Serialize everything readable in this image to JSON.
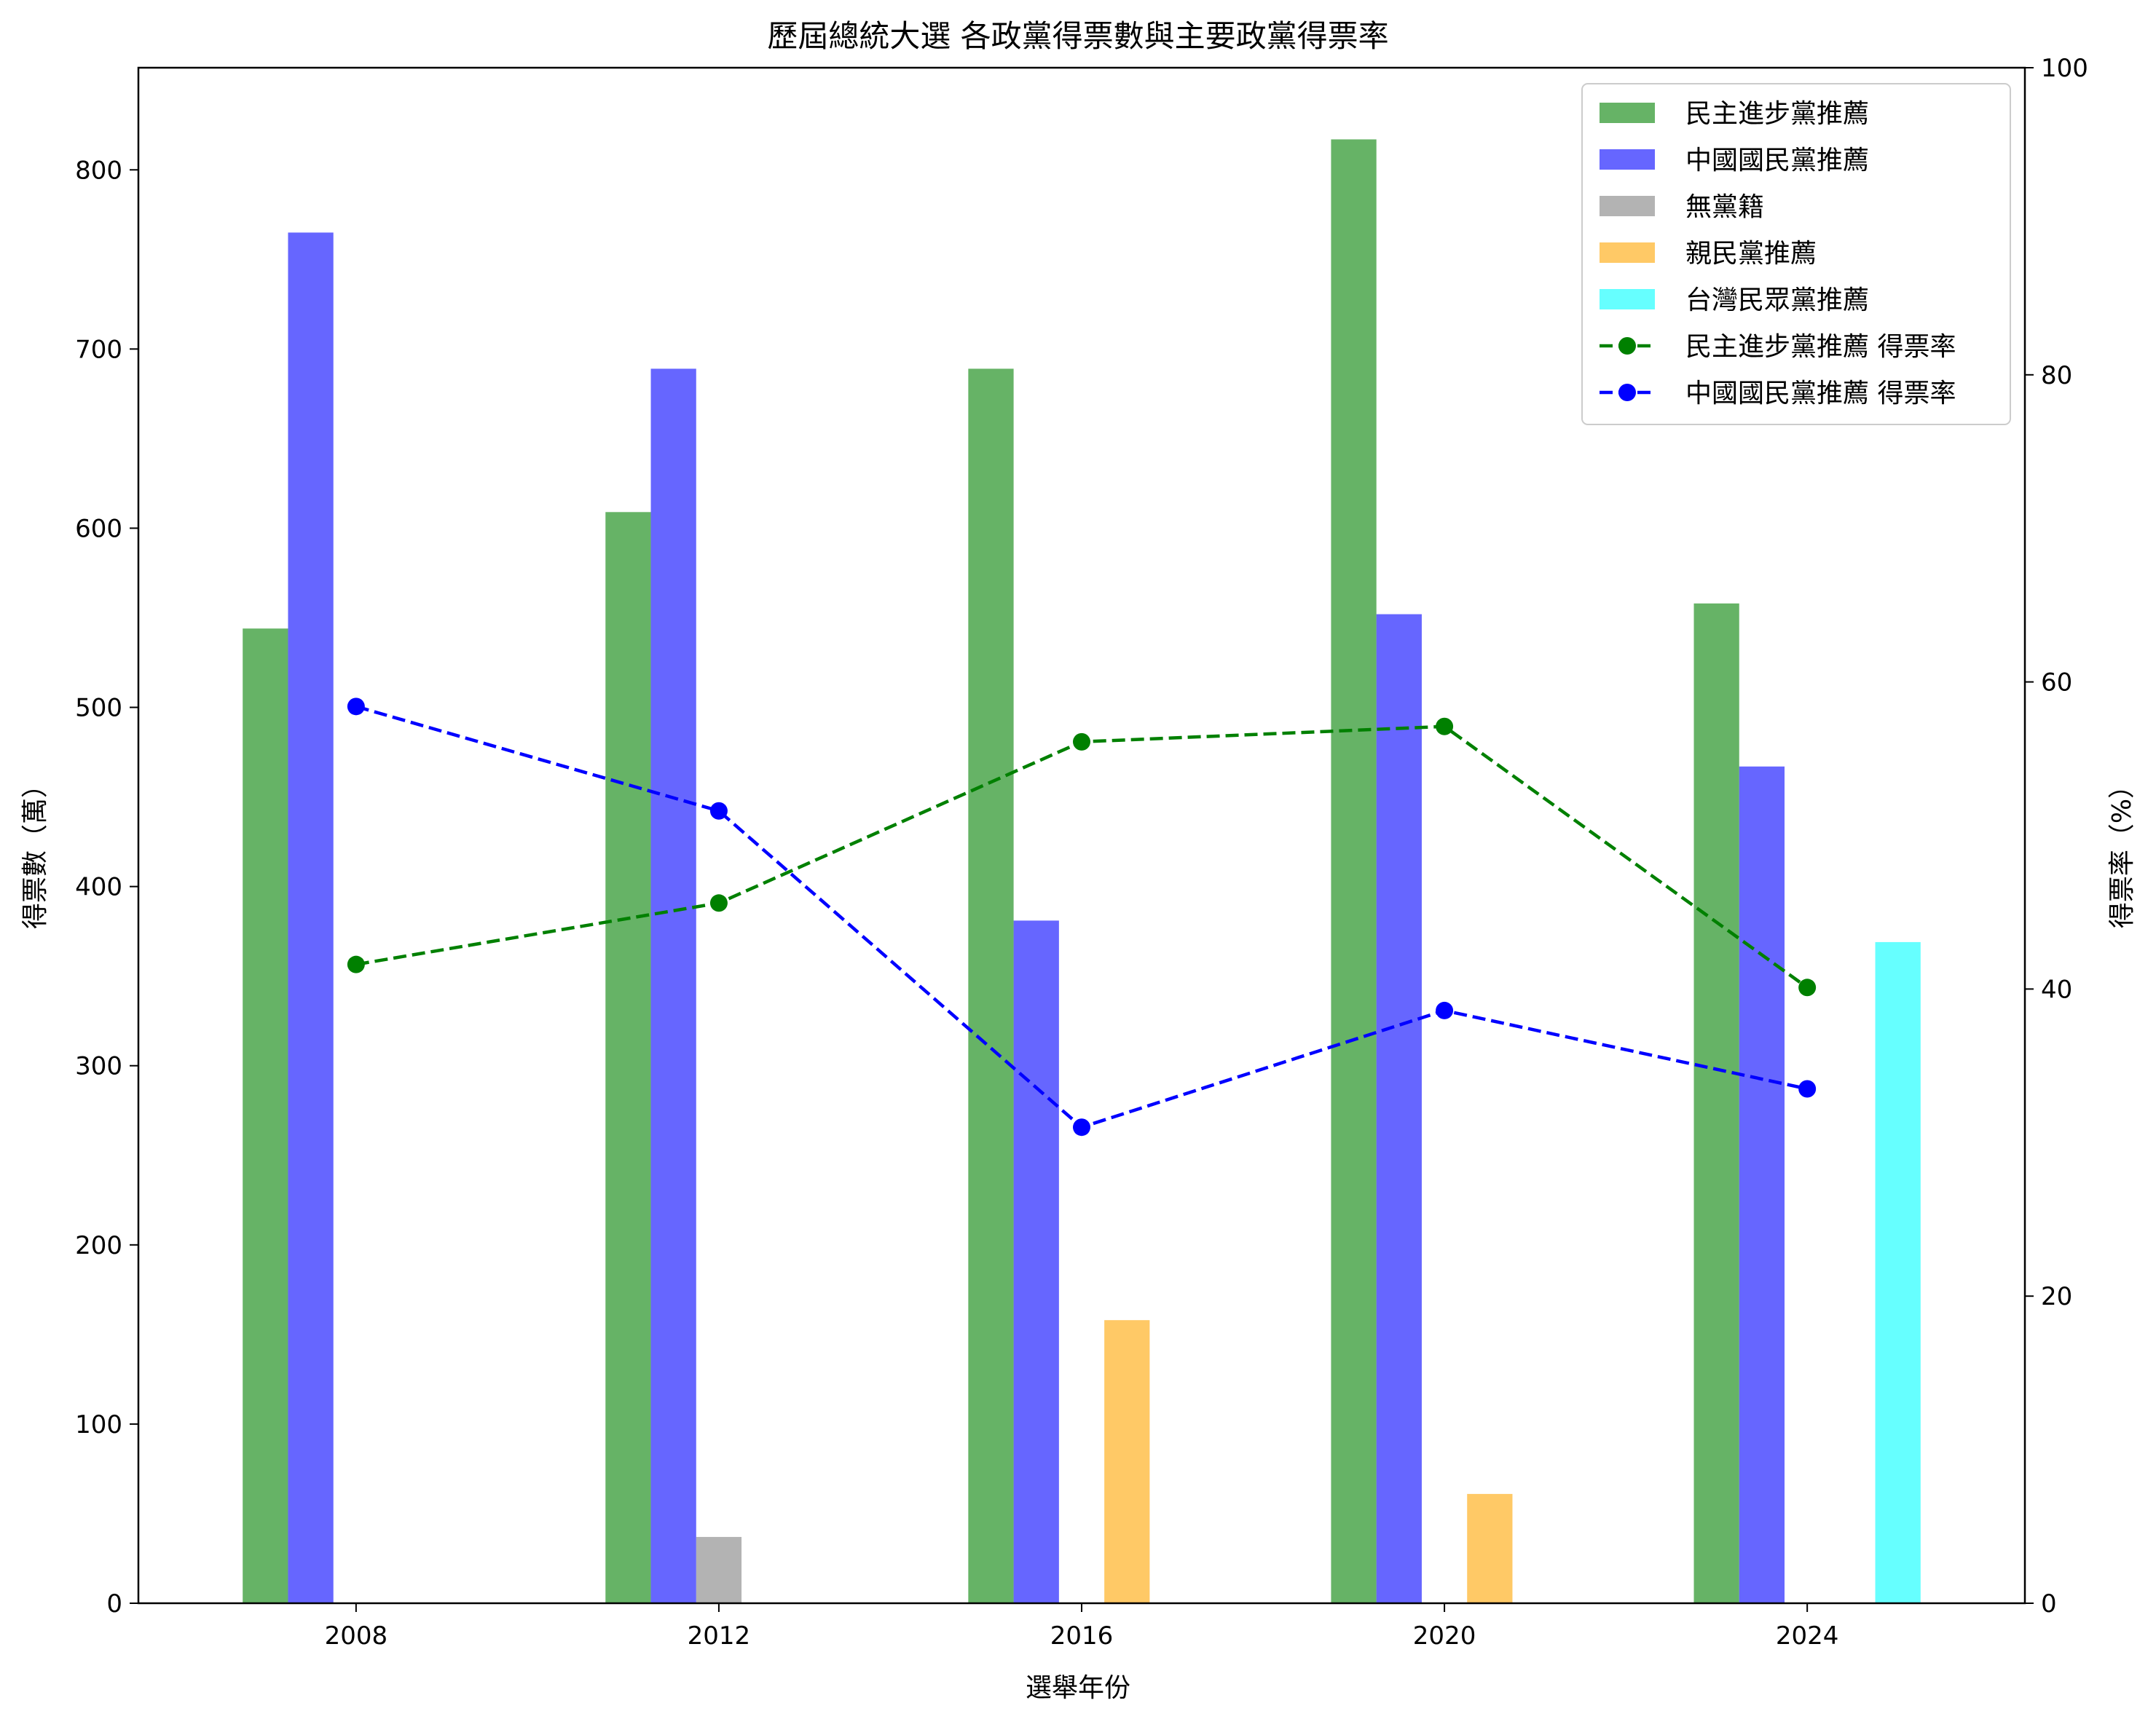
{
  "chart_data": {
    "type": "bar",
    "title": "歷屆總統大選 各政黨得票數與主要政黨得票率",
    "xlabel": "選舉年份",
    "ylabel": "得票數（萬）",
    "ylabel_right": "得票率（%）",
    "categories": [
      "2008",
      "2012",
      "2016",
      "2020",
      "2024"
    ],
    "ylim": [
      0,
      857
    ],
    "ylim_right": [
      0,
      100
    ],
    "yticks": [
      0,
      100,
      200,
      300,
      400,
      500,
      600,
      700,
      800
    ],
    "yticks_right": [
      0,
      20,
      40,
      60,
      80,
      100
    ],
    "grid": false,
    "legend_position": "top-right",
    "bar_series": [
      {
        "name": "民主進步黨推薦",
        "color": "#008000",
        "opacity": 0.6,
        "values": [
          544,
          609,
          689,
          817,
          558
        ]
      },
      {
        "name": "中國國民黨推薦",
        "color": "#0000ff",
        "opacity": 0.6,
        "values": [
          765,
          689,
          381,
          552,
          467
        ]
      },
      {
        "name": "無黨籍",
        "color": "#808080",
        "opacity": 0.6,
        "values": [
          null,
          37,
          null,
          null,
          null
        ]
      },
      {
        "name": "親民黨推薦",
        "color": "#ffa500",
        "opacity": 0.6,
        "values": [
          null,
          null,
          158,
          61,
          null
        ]
      },
      {
        "name": "台灣民眾黨推薦",
        "color": "#00ffff",
        "opacity": 0.6,
        "values": [
          null,
          null,
          null,
          null,
          369
        ]
      }
    ],
    "line_series": [
      {
        "name": "民主進步黨推薦 得票率",
        "color": "#008000",
        "values": [
          41.6,
          45.6,
          56.1,
          57.1,
          40.1
        ]
      },
      {
        "name": "中國國民黨推薦 得票率",
        "color": "#0000ff",
        "values": [
          58.4,
          51.6,
          31.0,
          38.6,
          33.5
        ]
      }
    ]
  }
}
